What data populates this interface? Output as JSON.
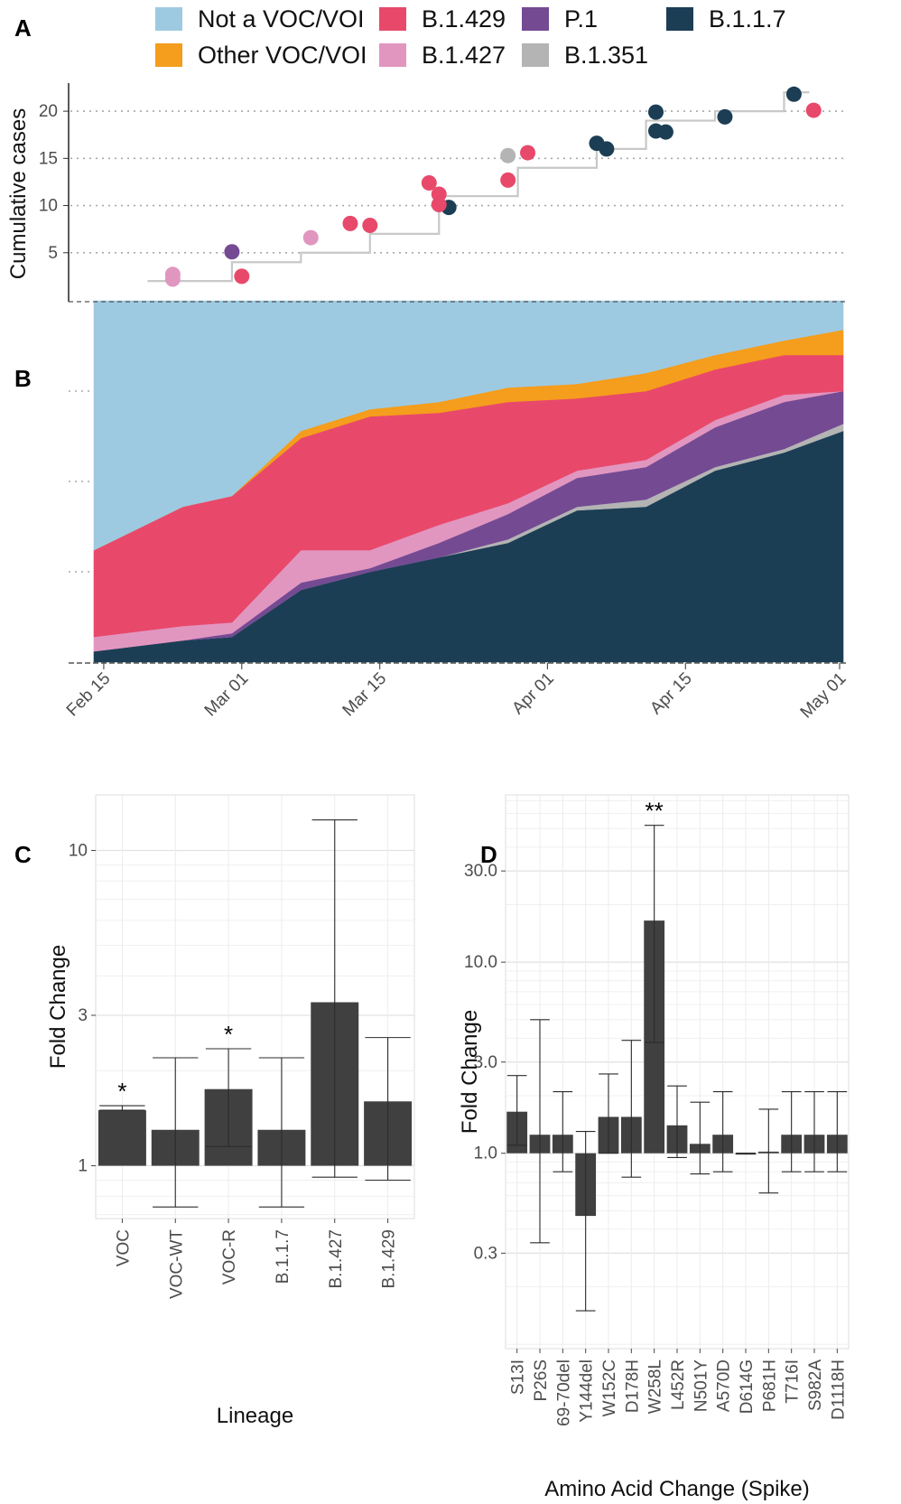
{
  "colors": {
    "Not a VOC/VOI": "#9ecae1",
    "Other VOC/VOI": "#f59d1c",
    "B.1.429": "#e8496b",
    "B.1.427": "#e196c0",
    "P.1": "#744a93",
    "B.1.351": "#b4b4b4",
    "B.1.1.7": "#1c3e55"
  },
  "panel_labels": [
    "A",
    "B",
    "C",
    "D"
  ],
  "legend": [
    "Not a VOC/VOI",
    "Other VOC/VOI",
    "B.1.429",
    "B.1.427",
    "P.1",
    "B.1.351",
    "B.1.1.7"
  ],
  "chart_data": [
    {
      "panel": "A",
      "type": "scatter",
      "ylabel": "Cumulative cases",
      "ylim": [
        0,
        22.5
      ],
      "yticks": [
        5,
        10,
        15,
        20
      ],
      "grid": "horizontal dotted",
      "x_dates": [
        "Feb 15",
        "Mar 01",
        "Mar 15",
        "Apr 01",
        "Apr 15",
        "May 01"
      ],
      "step": [
        {
          "date": "2021-02-20",
          "cases": 2
        },
        {
          "date": "2021-02-28",
          "cases": 4
        },
        {
          "date": "2021-03-07",
          "cases": 5
        },
        {
          "date": "2021-03-14",
          "cases": 7
        },
        {
          "date": "2021-03-21",
          "cases": 11
        },
        {
          "date": "2021-03-29",
          "cases": 14
        },
        {
          "date": "2021-04-06",
          "cases": 16
        },
        {
          "date": "2021-04-11",
          "cases": 19
        },
        {
          "date": "2021-04-18",
          "cases": 20
        },
        {
          "date": "2021-04-25",
          "cases": 22
        }
      ],
      "points": [
        {
          "date": "2021-02-22",
          "cases": 2.7,
          "lineage": "B.1.427"
        },
        {
          "date": "2021-02-22",
          "cases": 2.2,
          "lineage": "B.1.427"
        },
        {
          "date": "2021-02-28",
          "cases": 5.1,
          "lineage": "P.1"
        },
        {
          "date": "2021-03-01",
          "cases": 2.5,
          "lineage": "B.1.429"
        },
        {
          "date": "2021-03-08",
          "cases": 6.6,
          "lineage": "B.1.427"
        },
        {
          "date": "2021-03-12",
          "cases": 8.1,
          "lineage": "B.1.429"
        },
        {
          "date": "2021-03-14",
          "cases": 7.9,
          "lineage": "B.1.429"
        },
        {
          "date": "2021-03-20",
          "cases": 12.4,
          "lineage": "B.1.429"
        },
        {
          "date": "2021-03-21",
          "cases": 11.2,
          "lineage": "B.1.429"
        },
        {
          "date": "2021-03-22",
          "cases": 9.8,
          "lineage": "B.1.1.7"
        },
        {
          "date": "2021-03-21",
          "cases": 10.1,
          "lineage": "B.1.429"
        },
        {
          "date": "2021-03-28",
          "cases": 15.3,
          "lineage": "B.1.351"
        },
        {
          "date": "2021-03-28",
          "cases": 12.7,
          "lineage": "B.1.429"
        },
        {
          "date": "2021-03-30",
          "cases": 15.6,
          "lineage": "B.1.429"
        },
        {
          "date": "2021-04-06",
          "cases": 16.6,
          "lineage": "B.1.1.7"
        },
        {
          "date": "2021-04-07",
          "cases": 16.0,
          "lineage": "B.1.1.7"
        },
        {
          "date": "2021-04-12",
          "cases": 19.9,
          "lineage": "B.1.1.7"
        },
        {
          "date": "2021-04-12",
          "cases": 17.9,
          "lineage": "B.1.1.7"
        },
        {
          "date": "2021-04-13",
          "cases": 17.8,
          "lineage": "B.1.1.7"
        },
        {
          "date": "2021-04-19",
          "cases": 19.4,
          "lineage": "B.1.1.7"
        },
        {
          "date": "2021-04-26",
          "cases": 21.8,
          "lineage": "B.1.1.7"
        },
        {
          "date": "2021-04-28",
          "cases": 20.1,
          "lineage": "B.1.429"
        }
      ]
    },
    {
      "panel": "B",
      "type": "area",
      "stacked_proportion": true,
      "ylim": [
        0,
        1
      ],
      "x_dates": [
        "Feb 15",
        "Mar 01",
        "Mar 15",
        "Apr 01",
        "Apr 15",
        "May 01"
      ],
      "x": [
        "2021-02-15",
        "2021-02-23",
        "2021-02-28",
        "2021-03-07",
        "2021-03-14",
        "2021-03-21",
        "2021-03-28",
        "2021-04-04",
        "2021-04-11",
        "2021-04-18",
        "2021-04-25",
        "2021-05-01"
      ],
      "series": [
        {
          "name": "B.1.1.7",
          "values": [
            0.03,
            0.06,
            0.07,
            0.2,
            0.25,
            0.29,
            0.33,
            0.42,
            0.43,
            0.53,
            0.58,
            0.64
          ]
        },
        {
          "name": "B.1.351",
          "values": [
            0,
            0,
            0,
            0,
            0,
            0,
            0.01,
            0.01,
            0.02,
            0.01,
            0.01,
            0.02
          ]
        },
        {
          "name": "P.1",
          "values": [
            0,
            0,
            0.01,
            0.02,
            0.01,
            0.04,
            0.07,
            0.08,
            0.09,
            0.11,
            0.13,
            0.09
          ]
        },
        {
          "name": "B.1.427",
          "values": [
            0.04,
            0.04,
            0.03,
            0.09,
            0.05,
            0.05,
            0.03,
            0.02,
            0.02,
            0.02,
            0.02,
            0.0
          ]
        },
        {
          "name": "B.1.429",
          "values": [
            0.24,
            0.33,
            0.35,
            0.31,
            0.37,
            0.31,
            0.28,
            0.2,
            0.19,
            0.14,
            0.11,
            0.1
          ]
        },
        {
          "name": "Other VOC/VOI",
          "values": [
            0,
            0,
            0,
            0.02,
            0.02,
            0.03,
            0.04,
            0.04,
            0.05,
            0.04,
            0.04,
            0.07
          ]
        },
        {
          "name": "Not a VOC/VOI",
          "values": [
            0.69,
            0.57,
            0.54,
            0.36,
            0.3,
            0.28,
            0.24,
            0.23,
            0.2,
            0.15,
            0.11,
            0.08
          ]
        }
      ]
    },
    {
      "panel": "C",
      "type": "bar",
      "log_scale": true,
      "categories": [
        "VOC",
        "VOC-WT",
        "VOC-R",
        "B.1.1.7",
        "B.1.427",
        "B.1.429"
      ],
      "values": [
        1.5,
        1.3,
        1.75,
        1.3,
        3.3,
        1.6
      ],
      "ci_low": [
        1.5,
        0.74,
        1.15,
        0.74,
        0.92,
        0.9
      ],
      "ci_high": [
        1.55,
        2.2,
        2.35,
        2.2,
        12.5,
        2.55
      ],
      "significance": [
        "*",
        "",
        "*",
        "",
        "",
        ""
      ],
      "yticks": [
        1,
        3,
        10
      ],
      "ytick_labels": [
        "1",
        "3",
        "10"
      ],
      "ylim": [
        0.68,
        15
      ],
      "xlabel": "Lineage",
      "ylabel": "Fold Change"
    },
    {
      "panel": "D",
      "type": "bar",
      "log_scale": true,
      "categories": [
        "S13I",
        "P26S",
        "69-70del",
        "Y144del",
        "W152C",
        "D178H",
        "W258L",
        "L452R",
        "N501Y",
        "A570D",
        "D614G",
        "P681H",
        "T716I",
        "S982A",
        "D1118H"
      ],
      "values": [
        1.65,
        1.25,
        1.25,
        0.47,
        1.55,
        1.55,
        16.5,
        1.4,
        1.12,
        1.25,
        1.0,
        1.02,
        1.25,
        1.25,
        1.25
      ],
      "ci_low": [
        1.1,
        0.34,
        0.8,
        0.15,
        1.0,
        0.75,
        3.8,
        0.95,
        0.78,
        0.8,
        1.0,
        0.62,
        0.8,
        0.8,
        0.8
      ],
      "ci_high": [
        2.55,
        5.0,
        2.1,
        1.3,
        2.6,
        3.9,
        52.0,
        2.25,
        1.85,
        2.1,
        1.0,
        1.7,
        2.1,
        2.1,
        2.1
      ],
      "significance": [
        "",
        "",
        "",
        "",
        "",
        "",
        "**",
        "",
        "",
        "",
        "",
        "",
        "",
        "",
        ""
      ],
      "yticks": [
        0.3,
        1.0,
        3.0,
        10.0,
        30.0
      ],
      "ytick_labels": [
        "0.3",
        "1.0",
        "3.0",
        "10.0",
        "30.0"
      ],
      "ylim": [
        0.095,
        75
      ],
      "xlabel": "Amino Acid Change (Spike)",
      "ylabel": "Fold Change"
    }
  ]
}
